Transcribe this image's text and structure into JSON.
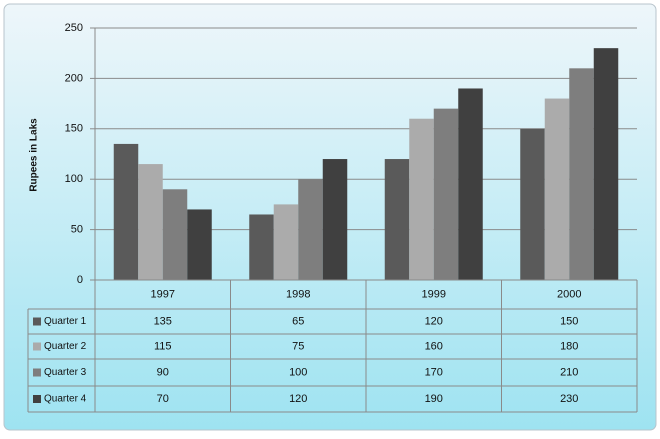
{
  "chart_data": {
    "type": "bar",
    "y_label": "Rupees in Laks",
    "categories": [
      "1997",
      "1998",
      "1999",
      "2000"
    ],
    "series": [
      {
        "name": "Quarter 1",
        "color": "#5a5a5a",
        "values": [
          135,
          65,
          120,
          150
        ]
      },
      {
        "name": "Quarter 2",
        "color": "#ababab",
        "values": [
          115,
          75,
          160,
          180
        ]
      },
      {
        "name": "Quarter 3",
        "color": "#7e7e7e",
        "values": [
          90,
          100,
          170,
          210
        ]
      },
      {
        "name": "Quarter 4",
        "color": "#404040",
        "values": [
          70,
          120,
          190,
          230
        ]
      }
    ],
    "ylim": [
      0,
      250
    ],
    "yticks": [
      0,
      50,
      100,
      150,
      200,
      250
    ],
    "grid": true,
    "data_table": true
  }
}
